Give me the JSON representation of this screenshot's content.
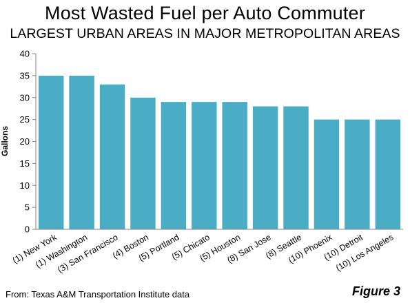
{
  "chart_data": {
    "type": "bar",
    "title": "Most Wasted Fuel per Auto Commuter",
    "subtitle": "LARGEST URBAN AREAS IN MAJOR METROPOLITAN AREAS",
    "xlabel": "",
    "ylabel": "Gallons",
    "ylim": [
      0,
      40
    ],
    "yticks": [
      0,
      5,
      10,
      15,
      20,
      25,
      30,
      35,
      40
    ],
    "grid": false,
    "legend": "none",
    "bar_color": "#4BACC6",
    "categories": [
      "(1) New York",
      "(1) Washington",
      "(3) San Francisco",
      "(4) Boston",
      "(5) Portland",
      "(5) Chicato",
      "(5) Houston",
      "(8) San Jose",
      "(8) Seattle",
      "(10) Phoenix",
      "(10) Detroit",
      "(10) Los Angeles"
    ],
    "values": [
      35,
      35,
      33,
      30,
      29,
      29,
      29,
      28,
      28,
      25,
      25,
      25
    ]
  },
  "footer": {
    "source": "From: Texas A&M Transportation Institute data",
    "figure": "Figure 3"
  }
}
